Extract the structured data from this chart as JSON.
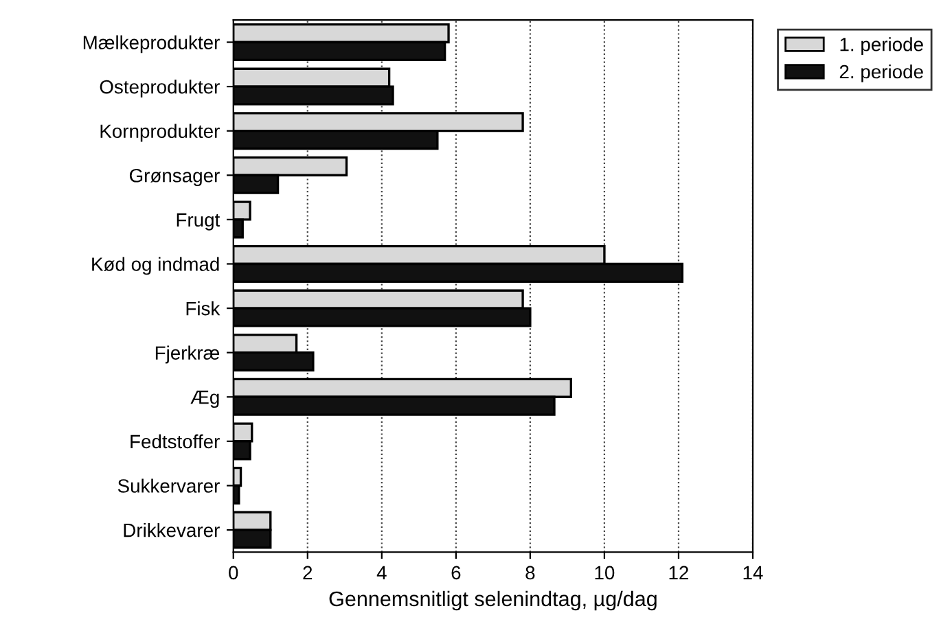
{
  "chart_data": {
    "type": "bar",
    "orientation": "horizontal",
    "xlabel": "Gennemsnitligt selenindtag, µg/dag",
    "categories": [
      "Mælkeprodukter",
      "Osteprodukter",
      "Kornprodukter",
      "Grønsager",
      "Frugt",
      "Kød og indmad",
      "Fisk",
      "Fjerkræ",
      "Æg",
      "Fedtstoffer",
      "Sukkervarer",
      "Drikkevarer"
    ],
    "series": [
      {
        "name": "1. periode",
        "color": "#d8d8d8",
        "values": [
          5.8,
          4.2,
          7.8,
          3.05,
          0.45,
          10.0,
          7.8,
          1.7,
          9.1,
          0.5,
          0.2,
          1.0
        ]
      },
      {
        "name": "2. periode",
        "color": "#111111",
        "values": [
          5.7,
          4.3,
          5.5,
          1.2,
          0.25,
          12.1,
          8.0,
          2.15,
          8.65,
          0.45,
          0.15,
          1.0
        ]
      }
    ],
    "xlim": [
      0,
      14
    ],
    "xticks": [
      0,
      2,
      4,
      6,
      8,
      10,
      12,
      14
    ],
    "grid": "x",
    "legend": "top right"
  }
}
